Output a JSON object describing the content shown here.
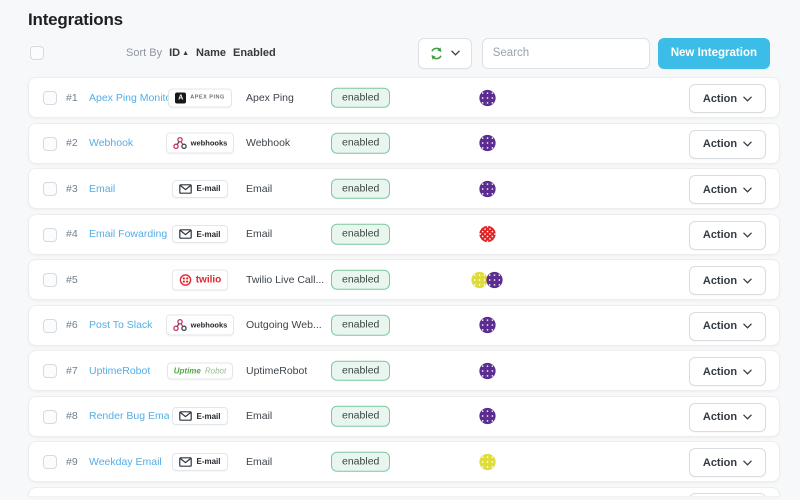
{
  "page": {
    "title": "Integrations"
  },
  "toolbar": {
    "sort_by_label": "Sort By",
    "sort_id": "ID",
    "sort_name": "Name",
    "sort_enabled": "Enabled",
    "search_placeholder": "Search",
    "new_integration_label": "New Integration"
  },
  "actions": {
    "action_label": "Action"
  },
  "logos": {
    "apexping": {
      "mark": "A",
      "text": "APEX PING"
    },
    "webhooks": {
      "text": "webhooks"
    },
    "email": {
      "text": "E-mail"
    },
    "twilio": {
      "text": "twilio"
    },
    "uptimerobot": {
      "text_bold": "Uptime",
      "text_light": "Robot"
    }
  },
  "avatar_colors": {
    "purple": "#5b2d91",
    "red": "#e02424",
    "yellow": "#dfdd3a"
  },
  "accent_colors": {
    "new_button": "#3bbde7",
    "refresh_icon": "#3f9e43",
    "link": "#54aee6",
    "enabled_badge_bg": "#e9f6ef",
    "enabled_badge_border": "#7cc79c"
  },
  "rows": [
    {
      "id": "#1",
      "name": "Apex Ping Monitor",
      "logo": "apexping",
      "type": "Apex Ping",
      "status": "enabled",
      "avatars": [
        "purple"
      ]
    },
    {
      "id": "#2",
      "name": "Webhook",
      "logo": "webhooks",
      "type": "Webhook",
      "status": "enabled",
      "avatars": [
        "purple"
      ]
    },
    {
      "id": "#3",
      "name": "Email",
      "logo": "email",
      "type": "Email",
      "status": "enabled",
      "avatars": [
        "purple"
      ]
    },
    {
      "id": "#4",
      "name": "Email Fowarding",
      "logo": "email",
      "type": "Email",
      "status": "enabled",
      "avatars": [
        "red"
      ]
    },
    {
      "id": "#5",
      "name": "",
      "logo": "twilio",
      "type": "Twilio Live Call...",
      "status": "enabled",
      "avatars": [
        "yellow",
        "purple"
      ]
    },
    {
      "id": "#6",
      "name": "Post To Slack",
      "logo": "webhooks",
      "type": "Outgoing Web...",
      "status": "enabled",
      "avatars": [
        "purple"
      ]
    },
    {
      "id": "#7",
      "name": "UptimeRobot",
      "logo": "uptimerobot",
      "type": "UptimeRobot",
      "status": "enabled",
      "avatars": [
        "purple"
      ]
    },
    {
      "id": "#8",
      "name": "Render Bug Email",
      "logo": "email",
      "type": "Email",
      "status": "enabled",
      "avatars": [
        "purple"
      ]
    },
    {
      "id": "#9",
      "name": "Weekday Email",
      "logo": "email",
      "type": "Email",
      "status": "enabled",
      "avatars": [
        "yellow"
      ]
    }
  ]
}
